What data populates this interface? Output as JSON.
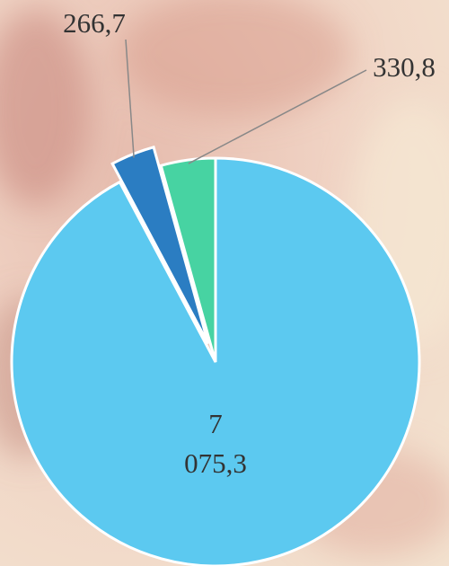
{
  "chart_data": {
    "type": "pie",
    "categories": [
      null,
      null,
      null
    ],
    "values": [
      7075.3,
      266.7,
      330.8
    ],
    "value_labels": [
      "7 075,3",
      "266,7",
      "330,8"
    ],
    "colors": [
      "#5cc9f0",
      "#2b7dc2",
      "#47d3a2"
    ],
    "exploded": [
      false,
      true,
      false
    ]
  }
}
